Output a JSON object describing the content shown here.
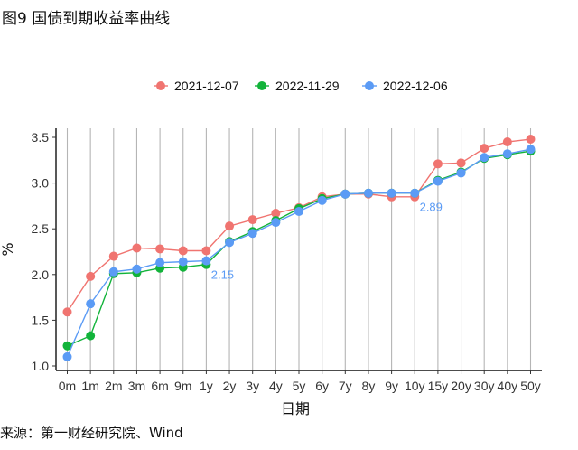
{
  "figure": {
    "title": "图9 国债到期收益率曲线",
    "source": "来源：第一财经研究院、Wind"
  },
  "chart_data": {
    "type": "line",
    "categories": [
      "0m",
      "1m",
      "2m",
      "3m",
      "6m",
      "9m",
      "1y",
      "2y",
      "3y",
      "4y",
      "5y",
      "6y",
      "7y",
      "8y",
      "9y",
      "10y",
      "15y",
      "20y",
      "30y",
      "40y",
      "50y"
    ],
    "xlabel": "日期",
    "ylabel": "%",
    "ylim": [
      1.0,
      3.5
    ],
    "yticks": [
      1.0,
      1.5,
      2.0,
      2.5,
      3.0,
      3.5
    ],
    "ytick_labels": [
      "1.0",
      "1.5",
      "2.0",
      "2.5",
      "3.0",
      "3.5"
    ],
    "grid": "vertical",
    "legend_position": "top",
    "series": [
      {
        "name": "2021-12-07",
        "color": "#F07470",
        "values": [
          1.59,
          1.98,
          2.2,
          2.29,
          2.28,
          2.26,
          2.26,
          2.53,
          2.6,
          2.67,
          2.73,
          2.85,
          2.88,
          2.88,
          2.85,
          2.85,
          3.21,
          3.22,
          3.38,
          3.45,
          3.48
        ]
      },
      {
        "name": "2022-11-29",
        "color": "#12B33A",
        "values": [
          1.22,
          1.33,
          2.01,
          2.02,
          2.07,
          2.08,
          2.11,
          2.36,
          2.47,
          2.59,
          2.72,
          2.83,
          2.88,
          2.89,
          2.89,
          2.89,
          3.03,
          3.12,
          3.27,
          3.31,
          3.35
        ]
      },
      {
        "name": "2022-12-06",
        "color": "#5B9BF5",
        "values": [
          1.1,
          1.68,
          2.03,
          2.06,
          2.13,
          2.14,
          2.15,
          2.35,
          2.45,
          2.57,
          2.69,
          2.81,
          2.88,
          2.89,
          2.89,
          2.89,
          3.02,
          3.11,
          3.28,
          3.32,
          3.37
        ]
      }
    ],
    "annotations": [
      {
        "text": "2.15",
        "series": "2022-12-06",
        "category": "1y",
        "color": "#5B9BF5"
      },
      {
        "text": "2.89",
        "series": "2022-12-06",
        "category": "10y",
        "color": "#5B9BF5"
      }
    ]
  }
}
